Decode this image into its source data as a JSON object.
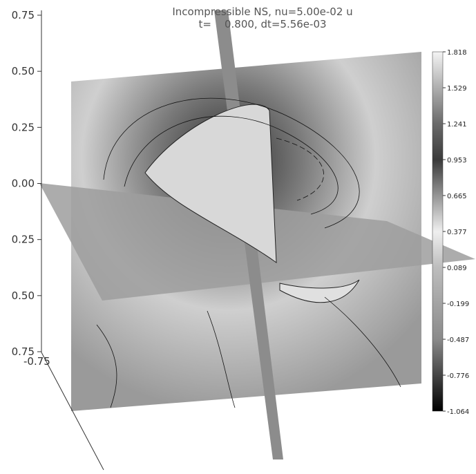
{
  "title": "Incompressible NS, nu=5.00e-02 u",
  "subtitle": "t=    0.800, dt=5.56e-03",
  "vertical_axis_labels": [
    "0.75",
    "0.50",
    "0.25",
    "0.00",
    "0.25",
    "0.50",
    "0.75"
  ],
  "depth_axis_label": "-0.75",
  "colorbar_labels": [
    "1.818",
    "1.529",
    "1.241",
    "0.953",
    "0.665",
    "0.377",
    "0.089",
    "-0.199",
    "-0.487",
    "-0.776",
    "-1.064"
  ]
}
